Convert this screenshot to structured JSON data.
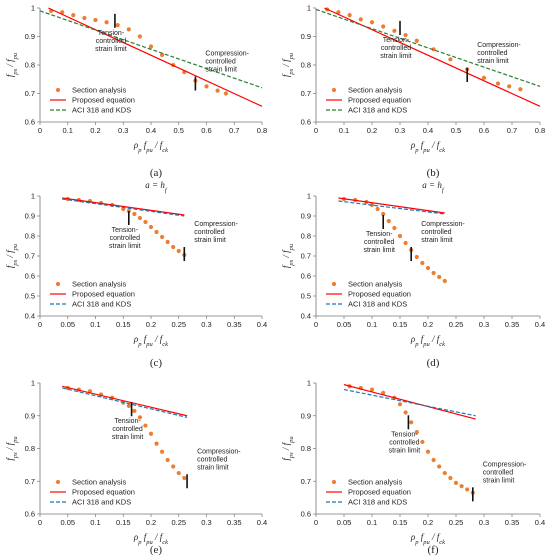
{
  "chart_data": [
    {
      "type": "scatter",
      "panel_label": "(a)",
      "top_label": "",
      "xlabel": "ρp fpu / fck",
      "ylabel": "fps / fpu",
      "xlim": [
        0,
        0.8
      ],
      "ylim": [
        0.6,
        1.0
      ],
      "xticks": [
        "0",
        "0.1",
        "0.2",
        "0.3",
        "0.4",
        "0.5",
        "0.6",
        "0.7",
        "0.8"
      ],
      "yticks": [
        "0.6",
        "0.7",
        "0.8",
        "0.9",
        "1"
      ],
      "legend": {
        "position": "bottom-left",
        "entries": [
          "Section analysis",
          "Proposed equation",
          "ACI 318 and KDS"
        ]
      },
      "annotations": [
        {
          "text": "Tension-controlled strain limit",
          "x": 0.27,
          "y": 0.955
        },
        {
          "text": "Compression-controlled strain limit",
          "x": 0.56,
          "y": 0.735
        }
      ],
      "series": [
        {
          "name": "Section analysis",
          "style": "dots",
          "x": [
            0.04,
            0.08,
            0.12,
            0.16,
            0.2,
            0.24,
            0.28,
            0.32,
            0.36,
            0.4,
            0.44,
            0.48,
            0.52,
            0.56,
            0.6,
            0.64,
            0.67
          ],
          "y": [
            0.99,
            0.985,
            0.975,
            0.965,
            0.958,
            0.95,
            0.94,
            0.925,
            0.9,
            0.865,
            0.835,
            0.8,
            0.775,
            0.745,
            0.725,
            0.71,
            0.7
          ]
        },
        {
          "name": "Proposed equation",
          "style": "solid",
          "x": [
            0.03,
            0.8
          ],
          "y": [
            1.0,
            0.655
          ]
        },
        {
          "name": "ACI 318 and KDS",
          "style": "dashed",
          "x": [
            0,
            0.8
          ],
          "y": [
            0.99,
            0.72
          ]
        }
      ]
    },
    {
      "type": "scatter",
      "panel_label": "(b)",
      "top_label": "",
      "xlabel": "ρp fpu / fck",
      "ylabel": "fps / fpu",
      "xlim": [
        0,
        0.8
      ],
      "ylim": [
        0.6,
        1.0
      ],
      "xticks": [
        "0",
        "0.1",
        "0.2",
        "0.3",
        "0.4",
        "0.5",
        "0.6",
        "0.7",
        "0.8"
      ],
      "yticks": [
        "0.6",
        "0.7",
        "0.8",
        "0.9",
        "1"
      ],
      "legend": {
        "position": "bottom-left",
        "entries": [
          "Section analysis",
          "Proposed equation",
          "ACI 318 and KDS"
        ]
      },
      "annotations": [
        {
          "text": "Tension-controlled strain limit",
          "x": 0.3,
          "y": 0.93
        },
        {
          "text": "Compression-controlled strain limit",
          "x": 0.54,
          "y": 0.765
        }
      ],
      "series": [
        {
          "name": "Section analysis",
          "style": "dots",
          "x": [
            0.04,
            0.08,
            0.12,
            0.16,
            0.2,
            0.24,
            0.28,
            0.32,
            0.36,
            0.42,
            0.48,
            0.54,
            0.6,
            0.65,
            0.69,
            0.73
          ],
          "y": [
            0.995,
            0.985,
            0.975,
            0.96,
            0.95,
            0.935,
            0.92,
            0.905,
            0.885,
            0.855,
            0.82,
            0.785,
            0.755,
            0.735,
            0.725,
            0.715
          ]
        },
        {
          "name": "Proposed equation",
          "style": "solid",
          "x": [
            0.03,
            0.8
          ],
          "y": [
            1.0,
            0.655
          ]
        },
        {
          "name": "ACI 318 and KDS",
          "style": "dashed",
          "x": [
            0,
            0.8
          ],
          "y": [
            0.995,
            0.725
          ]
        }
      ]
    },
    {
      "type": "scatter",
      "panel_label": "(c)",
      "top_label": "a = hf",
      "xlabel": "ρp fpu / fck",
      "ylabel": "fps / fpu",
      "xlim": [
        0,
        0.4
      ],
      "ylim": [
        0.4,
        1.0
      ],
      "xticks": [
        "0",
        "0.05",
        "0.1",
        "0.15",
        "0.2",
        "0.25",
        "0.3",
        "0.35",
        "0.4"
      ],
      "yticks": [
        "0.4",
        "0.5",
        "0.6",
        "0.7",
        "0.8",
        "0.9",
        "1"
      ],
      "legend": {
        "position": "bottom-left",
        "entries": [
          "Section analysis",
          "Proposed equation",
          "ACI 318 and KDS"
        ]
      },
      "annotations": [
        {
          "text": "Tension-controlled strain limit",
          "x": 0.16,
          "y": 0.89
        },
        {
          "text": "Compression-controlled strain limit",
          "x": 0.26,
          "y": 0.71
        }
      ],
      "series": [
        {
          "name": "Section analysis",
          "style": "dots",
          "x": [
            0.05,
            0.07,
            0.09,
            0.11,
            0.13,
            0.15,
            0.16,
            0.17,
            0.18,
            0.19,
            0.2,
            0.21,
            0.22,
            0.23,
            0.24,
            0.25,
            0.26
          ],
          "y": [
            0.985,
            0.98,
            0.975,
            0.965,
            0.955,
            0.935,
            0.925,
            0.91,
            0.89,
            0.87,
            0.845,
            0.82,
            0.795,
            0.77,
            0.745,
            0.725,
            0.705
          ]
        },
        {
          "name": "Proposed equation",
          "style": "solid",
          "x": [
            0.04,
            0.26
          ],
          "y": [
            0.99,
            0.905
          ]
        },
        {
          "name": "ACI 318 and KDS",
          "style": "dashed",
          "x": [
            0.04,
            0.26
          ],
          "y": [
            0.985,
            0.9
          ]
        }
      ]
    },
    {
      "type": "scatter",
      "panel_label": "(d)",
      "top_label": "a = hf",
      "xlabel": "ρp fpu / fck",
      "ylabel": "fps / fpu",
      "xlim": [
        0,
        0.4
      ],
      "ylim": [
        0.4,
        1.0
      ],
      "xticks": [
        "0",
        "0.05",
        "0.1",
        "0.15",
        "0.2",
        "0.25",
        "0.3",
        "0.35",
        "0.4"
      ],
      "yticks": [
        "0.4",
        "0.5",
        "0.6",
        "0.7",
        "0.8",
        "0.9",
        "1"
      ],
      "legend": {
        "position": "bottom-left",
        "entries": [
          "Section analysis",
          "Proposed equation",
          "ACI 318 and KDS"
        ]
      },
      "annotations": [
        {
          "text": "Tension-controlled strain limit",
          "x": 0.12,
          "y": 0.87
        },
        {
          "text": "Compression-controlled strain limit",
          "x": 0.17,
          "y": 0.71
        }
      ],
      "series": [
        {
          "name": "Section analysis",
          "style": "dots",
          "x": [
            0.05,
            0.07,
            0.09,
            0.1,
            0.11,
            0.12,
            0.13,
            0.14,
            0.15,
            0.16,
            0.17,
            0.18,
            0.19,
            0.2,
            0.21,
            0.22,
            0.23
          ],
          "y": [
            0.985,
            0.98,
            0.97,
            0.955,
            0.935,
            0.91,
            0.875,
            0.84,
            0.8,
            0.765,
            0.73,
            0.695,
            0.665,
            0.64,
            0.615,
            0.595,
            0.575
          ]
        },
        {
          "name": "Proposed equation",
          "style": "solid",
          "x": [
            0.04,
            0.23
          ],
          "y": [
            0.99,
            0.915
          ]
        },
        {
          "name": "ACI 318 and KDS",
          "style": "dashed",
          "x": [
            0.04,
            0.23
          ],
          "y": [
            0.975,
            0.91
          ]
        }
      ]
    },
    {
      "type": "scatter",
      "panel_label": "(e)",
      "top_label": "",
      "xlabel": "ρp fpu / fck",
      "ylabel": "fps / fpu",
      "xlim": [
        0,
        0.4
      ],
      "ylim": [
        0.6,
        1.0
      ],
      "xticks": [
        "0",
        "0.05",
        "0.1",
        "0.15",
        "0.2",
        "0.25",
        "0.3",
        "0.35",
        "0.4"
      ],
      "yticks": [
        "0.6",
        "0.7",
        "0.8",
        "0.9",
        "1"
      ],
      "legend": {
        "position": "bottom-left",
        "entries": [
          "Section analysis",
          "Proposed equation",
          "ACI 318 and KDS"
        ]
      },
      "annotations": [
        {
          "text": "Tension-controlled strain limit",
          "x": 0.165,
          "y": 0.92
        },
        {
          "text": "Compression-controlled strain limit",
          "x": 0.265,
          "y": 0.7
        }
      ],
      "series": [
        {
          "name": "Section analysis",
          "style": "dots",
          "x": [
            0.05,
            0.07,
            0.09,
            0.11,
            0.13,
            0.15,
            0.16,
            0.17,
            0.18,
            0.19,
            0.2,
            0.21,
            0.22,
            0.23,
            0.24,
            0.25,
            0.26
          ],
          "y": [
            0.985,
            0.98,
            0.975,
            0.965,
            0.955,
            0.94,
            0.93,
            0.915,
            0.895,
            0.87,
            0.845,
            0.815,
            0.79,
            0.765,
            0.745,
            0.725,
            0.71
          ]
        },
        {
          "name": "Proposed equation",
          "style": "solid",
          "x": [
            0.04,
            0.265
          ],
          "y": [
            0.99,
            0.9
          ]
        },
        {
          "name": "ACI 318 and KDS",
          "style": "dashed",
          "x": [
            0.04,
            0.265
          ],
          "y": [
            0.985,
            0.895
          ]
        }
      ]
    },
    {
      "type": "scatter",
      "panel_label": "(f)",
      "top_label": "",
      "xlabel": "ρp fpu / fck",
      "ylabel": "fps / fpu",
      "xlim": [
        0,
        0.4
      ],
      "ylim": [
        0.6,
        1.0
      ],
      "xticks": [
        "0",
        "0.05",
        "0.1",
        "0.15",
        "0.2",
        "0.25",
        "0.3",
        "0.35",
        "0.4"
      ],
      "yticks": [
        "0.6",
        "0.7",
        "0.8",
        "0.9",
        "1"
      ],
      "legend": {
        "position": "bottom-left",
        "entries": [
          "Section analysis",
          "Proposed equation",
          "ACI 318 and KDS"
        ]
      },
      "annotations": [
        {
          "text": "Tension-controlled strain limit",
          "x": 0.165,
          "y": 0.88
        },
        {
          "text": "Compression-controlled strain limit",
          "x": 0.28,
          "y": 0.66
        }
      ],
      "series": [
        {
          "name": "Section analysis",
          "style": "dots",
          "x": [
            0.06,
            0.08,
            0.1,
            0.12,
            0.14,
            0.15,
            0.16,
            0.17,
            0.18,
            0.19,
            0.2,
            0.21,
            0.22,
            0.23,
            0.24,
            0.25,
            0.26,
            0.27,
            0.28
          ],
          "y": [
            0.99,
            0.985,
            0.98,
            0.97,
            0.955,
            0.935,
            0.91,
            0.88,
            0.85,
            0.82,
            0.79,
            0.765,
            0.745,
            0.725,
            0.71,
            0.695,
            0.685,
            0.675,
            0.665
          ]
        },
        {
          "name": "Proposed equation",
          "style": "solid",
          "x": [
            0.05,
            0.285
          ],
          "y": [
            0.995,
            0.89
          ]
        },
        {
          "name": "ACI 318 and KDS",
          "style": "dashed",
          "x": [
            0.05,
            0.285
          ],
          "y": [
            0.98,
            0.9
          ]
        }
      ]
    }
  ],
  "colors": {
    "dots": "#ED7D31",
    "proposed": "#FF0000",
    "aci_ab": "#2E7D32",
    "aci_cdef": "#1F77B4"
  }
}
